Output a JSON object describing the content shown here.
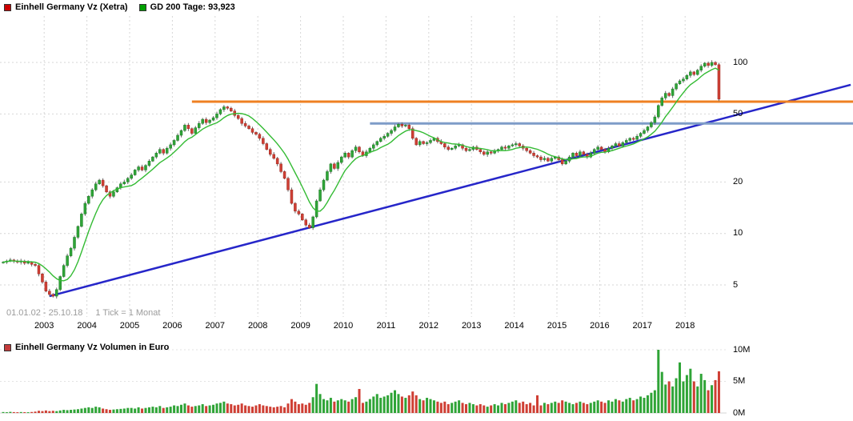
{
  "header_legend": {
    "series1": {
      "label": "Einhell Germany Vz (Xetra)",
      "color": "#cc0000"
    },
    "series2": {
      "label": "GD 200 Tage: 93,923",
      "color": "#00a000"
    }
  },
  "volume_legend": {
    "label": "Einhell Germany Vz Volumen in Euro",
    "color": "#c43b3b"
  },
  "footer": {
    "range": "01.01.02 - 25.10.18",
    "tick_info": "1 Tick = 1 Monat"
  },
  "axis": {
    "price_ticks": [
      {
        "label": "100",
        "value": 100
      },
      {
        "label": "50",
        "value": 50
      },
      {
        "label": "20",
        "value": 20
      },
      {
        "label": "10",
        "value": 10
      },
      {
        "label": "5",
        "value": 5
      }
    ],
    "years": [
      2003,
      2004,
      2005,
      2006,
      2007,
      2008,
      2009,
      2010,
      2011,
      2012,
      2013,
      2014,
      2015,
      2016,
      2017,
      2018
    ],
    "volume_ticks": [
      {
        "label": "10M",
        "value": 10
      },
      {
        "label": "5M",
        "value": 5
      },
      {
        "label": "0M",
        "value": 0
      }
    ]
  },
  "colors": {
    "up": "#2fa437",
    "upStroke": "#1d7a26",
    "down": "#cf3f34",
    "downStroke": "#9c2a22",
    "wick": "#666666",
    "ma": "#33bb33",
    "grid": "#d6d6d6",
    "volGrid": "#e3e3e3"
  },
  "chart_data": {
    "type": "candlestick",
    "title": "Einhell Germany Vz (Xetra)",
    "interval": "monthly",
    "x_start": "2002-01",
    "x_end": "2018-10",
    "y_scale": "log",
    "ylim": [
      3.2,
      190
    ],
    "monthly_closes": [
      6.8,
      6.9,
      7.0,
      6.9,
      6.8,
      6.9,
      6.7,
      6.8,
      6.6,
      6.5,
      5.8,
      5.2,
      4.6,
      4.4,
      4.3,
      4.7,
      5.6,
      6.5,
      7.4,
      8.2,
      9.5,
      11.0,
      13.0,
      15.0,
      16.5,
      18.0,
      19.5,
      20.5,
      19.0,
      17.5,
      16.5,
      17.5,
      18.5,
      19.5,
      20.0,
      21.0,
      22.0,
      23.5,
      24.5,
      23.5,
      25.0,
      26.5,
      28.0,
      29.5,
      31.0,
      29.5,
      31.5,
      33.0,
      35.0,
      37.5,
      40.0,
      43.0,
      41.0,
      38.5,
      41.5,
      44.0,
      46.5,
      44.5,
      46.0,
      47.5,
      50.0,
      53.0,
      55.0,
      54.0,
      52.0,
      49.0,
      47.0,
      44.0,
      42.5,
      41.0,
      39.0,
      38.0,
      36.0,
      33.5,
      31.0,
      29.0,
      27.5,
      25.5,
      23.0,
      21.0,
      18.0,
      15.0,
      13.5,
      13.0,
      12.0,
      11.2,
      10.8,
      12.5,
      15.5,
      18.0,
      20.5,
      23.0,
      25.5,
      24.0,
      26.0,
      28.0,
      29.5,
      28.0,
      30.5,
      32.0,
      30.0,
      28.5,
      30.0,
      31.5,
      33.0,
      34.5,
      36.0,
      37.0,
      38.5,
      40.0,
      42.0,
      43.5,
      42.5,
      43.0,
      41.0,
      36.0,
      33.0,
      34.5,
      33.5,
      34.0,
      35.0,
      36.0,
      34.5,
      33.5,
      32.0,
      31.0,
      31.5,
      32.5,
      33.0,
      31.5,
      30.5,
      31.0,
      32.0,
      31.0,
      30.0,
      29.0,
      30.0,
      29.5,
      30.5,
      31.0,
      32.0,
      31.5,
      32.5,
      33.0,
      33.5,
      32.5,
      31.5,
      30.5,
      29.5,
      28.5,
      28.0,
      27.0,
      27.5,
      26.5,
      27.5,
      28.0,
      27.0,
      25.5,
      26.5,
      28.0,
      29.5,
      28.5,
      30.0,
      29.0,
      28.0,
      29.5,
      31.0,
      32.0,
      31.0,
      30.0,
      31.5,
      32.5,
      33.5,
      32.5,
      34.0,
      35.0,
      36.0,
      35.5,
      37.0,
      38.5,
      40.0,
      42.0,
      44.5,
      48.0,
      56.0,
      62.0,
      66.0,
      64.0,
      70.0,
      75.0,
      78.0,
      80.0,
      84.0,
      88.0,
      85.0,
      90.0,
      95.0,
      99.0,
      96.0,
      100.0,
      97.0,
      61.0
    ],
    "monthly_volume_eur_millions": [
      0.15,
      0.12,
      0.18,
      0.14,
      0.12,
      0.15,
      0.13,
      0.12,
      0.16,
      0.22,
      0.35,
      0.3,
      0.4,
      0.3,
      0.35,
      0.3,
      0.4,
      0.5,
      0.45,
      0.5,
      0.55,
      0.6,
      0.7,
      0.8,
      0.9,
      0.8,
      1.0,
      0.9,
      0.7,
      0.6,
      0.5,
      0.55,
      0.6,
      0.65,
      0.7,
      0.8,
      0.8,
      0.7,
      0.9,
      0.7,
      0.8,
      0.9,
      1.0,
      0.9,
      1.1,
      0.8,
      0.9,
      1.0,
      1.2,
      1.1,
      1.3,
      1.5,
      1.2,
      1.0,
      1.1,
      1.2,
      1.4,
      1.1,
      1.2,
      1.3,
      1.5,
      1.6,
      1.8,
      1.5,
      1.4,
      1.2,
      1.3,
      1.5,
      1.2,
      1.1,
      1.0,
      1.2,
      1.4,
      1.2,
      1.1,
      1.0,
      0.9,
      1.0,
      1.1,
      0.9,
      1.5,
      2.2,
      1.8,
      1.4,
      1.5,
      1.3,
      1.6,
      2.5,
      4.6,
      3.0,
      2.2,
      2.0,
      2.4,
      1.8,
      2.0,
      2.2,
      2.0,
      1.8,
      2.2,
      2.5,
      3.8,
      1.6,
      1.8,
      2.2,
      2.6,
      3.0,
      2.4,
      2.6,
      2.8,
      3.2,
      3.6,
      3.0,
      2.6,
      2.4,
      2.8,
      3.4,
      2.8,
      2.2,
      2.0,
      2.4,
      2.2,
      2.0,
      1.8,
      1.6,
      1.8,
      1.4,
      1.6,
      1.8,
      2.0,
      1.6,
      1.4,
      1.6,
      1.4,
      1.2,
      1.4,
      1.2,
      1.0,
      1.2,
      1.4,
      1.2,
      1.6,
      1.4,
      1.6,
      1.8,
      2.0,
      1.6,
      1.8,
      1.4,
      1.6,
      1.2,
      2.8,
      1.2,
      1.6,
      1.4,
      1.6,
      1.8,
      1.6,
      2.0,
      1.8,
      1.6,
      1.4,
      1.6,
      1.8,
      1.6,
      1.4,
      1.6,
      1.8,
      2.0,
      1.8,
      1.6,
      2.0,
      1.8,
      2.2,
      2.0,
      1.8,
      2.2,
      2.4,
      2.0,
      2.2,
      2.6,
      2.4,
      2.8,
      3.2,
      3.6,
      10.0,
      6.5,
      4.5,
      5.0,
      4.2,
      5.5,
      8.0,
      5.0,
      6.0,
      7.0,
      5.0,
      4.2,
      6.2,
      5.2,
      3.6,
      4.4,
      5.2,
      6.6
    ],
    "moving_average": {
      "label": "GD 200 Tage",
      "window_months": 9,
      "last_value": 93.923
    },
    "horizontal_lines": [
      {
        "name": "resistance-line-orange",
        "value": 59,
        "color": "#ef8022",
        "start_month_index": 53
      },
      {
        "name": "support-line-blue",
        "value": 44,
        "color": "#7e9cc8",
        "start_month_index": 103
      }
    ],
    "trend_line": {
      "name": "ascending-trend-line",
      "color": "#2626c9",
      "start": {
        "month_index": 13,
        "value": 4.3
      },
      "end": {
        "month_index": 238,
        "value": 74
      }
    }
  }
}
